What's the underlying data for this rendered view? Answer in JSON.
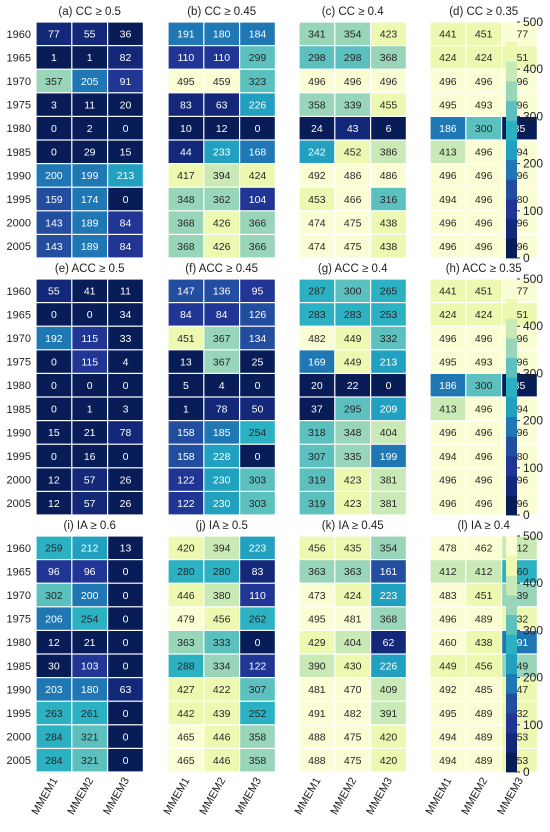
{
  "chart_data": {
    "type": "heatmap",
    "years": [
      "1960",
      "1965",
      "1970",
      "1975",
      "1980",
      "1985",
      "1990",
      "1995",
      "2000",
      "2005"
    ],
    "models": [
      "MMEM1",
      "MMEM2",
      "MMEM3"
    ],
    "colorbar": {
      "min": 0,
      "max": 500,
      "ticks": [
        0,
        100,
        200,
        300,
        400,
        500
      ],
      "levels": 12,
      "colormap": "YlGnBu"
    },
    "panels": [
      {
        "title": "(a) CC ≥ 0.5",
        "values": [
          [
            77,
            55,
            36
          ],
          [
            1,
            1,
            82
          ],
          [
            357,
            205,
            91
          ],
          [
            3,
            11,
            20
          ],
          [
            0,
            2,
            0
          ],
          [
            0,
            29,
            15
          ],
          [
            200,
            199,
            213
          ],
          [
            159,
            174,
            0
          ],
          [
            143,
            189,
            84
          ],
          [
            143,
            189,
            84
          ]
        ]
      },
      {
        "title": "(b) CC ≥ 0.45",
        "values": [
          [
            191,
            180,
            184
          ],
          [
            110,
            110,
            299
          ],
          [
            495,
            459,
            323
          ],
          [
            83,
            63,
            226
          ],
          [
            10,
            12,
            0
          ],
          [
            44,
            233,
            168
          ],
          [
            417,
            394,
            424
          ],
          [
            348,
            362,
            104
          ],
          [
            368,
            426,
            366
          ],
          [
            368,
            426,
            366
          ]
        ]
      },
      {
        "title": "(c) CC ≥ 0.4",
        "values": [
          [
            341,
            354,
            423
          ],
          [
            298,
            298,
            368
          ],
          [
            496,
            496,
            496
          ],
          [
            358,
            339,
            455
          ],
          [
            24,
            43,
            6
          ],
          [
            242,
            452,
            386
          ],
          [
            492,
            486,
            486
          ],
          [
            453,
            466,
            316
          ],
          [
            474,
            475,
            438
          ],
          [
            474,
            475,
            438
          ]
        ]
      },
      {
        "title": "(d) CC ≥ 0.35",
        "values": [
          [
            441,
            451,
            477
          ],
          [
            424,
            424,
            451
          ],
          [
            496,
            496,
            496
          ],
          [
            495,
            493,
            496
          ],
          [
            186,
            300,
            35
          ],
          [
            413,
            496,
            494
          ],
          [
            496,
            496,
            496
          ],
          [
            494,
            496,
            480
          ],
          [
            496,
            496,
            496
          ],
          [
            496,
            496,
            496
          ]
        ]
      },
      {
        "title": "(e) ACC ≥ 0.5",
        "values": [
          [
            55,
            41,
            11
          ],
          [
            0,
            0,
            34
          ],
          [
            192,
            115,
            33
          ],
          [
            0,
            115,
            4
          ],
          [
            0,
            0,
            0
          ],
          [
            0,
            1,
            3
          ],
          [
            15,
            21,
            78
          ],
          [
            0,
            16,
            0
          ],
          [
            12,
            57,
            26
          ],
          [
            12,
            57,
            26
          ]
        ]
      },
      {
        "title": "(f) ACC ≥ 0.45",
        "values": [
          [
            147,
            136,
            95
          ],
          [
            84,
            84,
            126
          ],
          [
            451,
            367,
            134
          ],
          [
            13,
            367,
            25
          ],
          [
            5,
            4,
            0
          ],
          [
            1,
            78,
            50
          ],
          [
            158,
            185,
            254
          ],
          [
            158,
            228,
            0
          ],
          [
            122,
            230,
            303
          ],
          [
            122,
            230,
            303
          ]
        ]
      },
      {
        "title": "(g) ACC ≥ 0.4",
        "values": [
          [
            287,
            300,
            265
          ],
          [
            283,
            283,
            253
          ],
          [
            482,
            449,
            332
          ],
          [
            169,
            449,
            213
          ],
          [
            20,
            22,
            0
          ],
          [
            37,
            295,
            209
          ],
          [
            318,
            348,
            404
          ],
          [
            307,
            335,
            199
          ],
          [
            319,
            423,
            381
          ],
          [
            319,
            423,
            381
          ]
        ]
      },
      {
        "title": "(h) ACC ≥ 0.35",
        "values": [
          [
            441,
            451,
            477
          ],
          [
            424,
            424,
            451
          ],
          [
            496,
            496,
            496
          ],
          [
            495,
            493,
            496
          ],
          [
            186,
            300,
            35
          ],
          [
            413,
            496,
            494
          ],
          [
            496,
            496,
            496
          ],
          [
            494,
            496,
            480
          ],
          [
            496,
            496,
            496
          ],
          [
            496,
            496,
            496
          ]
        ]
      },
      {
        "title": "(i) IA ≥ 0.6",
        "values": [
          [
            259,
            212,
            13
          ],
          [
            96,
            96,
            0
          ],
          [
            302,
            200,
            0
          ],
          [
            206,
            254,
            0
          ],
          [
            12,
            21,
            0
          ],
          [
            30,
            103,
            0
          ],
          [
            203,
            180,
            63
          ],
          [
            263,
            261,
            0
          ],
          [
            284,
            321,
            0
          ],
          [
            284,
            321,
            0
          ]
        ]
      },
      {
        "title": "(j) IA ≥ 0.5",
        "values": [
          [
            420,
            394,
            223
          ],
          [
            280,
            280,
            83
          ],
          [
            446,
            380,
            110
          ],
          [
            479,
            456,
            262
          ],
          [
            363,
            333,
            0
          ],
          [
            288,
            334,
            122
          ],
          [
            427,
            422,
            307
          ],
          [
            442,
            439,
            252
          ],
          [
            465,
            446,
            358
          ],
          [
            465,
            446,
            358
          ]
        ]
      },
      {
        "title": "(k) IA ≥ 0.45",
        "values": [
          [
            456,
            435,
            354
          ],
          [
            363,
            363,
            161
          ],
          [
            473,
            424,
            223
          ],
          [
            495,
            481,
            368
          ],
          [
            429,
            404,
            62
          ],
          [
            390,
            430,
            226
          ],
          [
            481,
            470,
            409
          ],
          [
            491,
            482,
            391
          ],
          [
            488,
            475,
            420
          ],
          [
            488,
            475,
            420
          ]
        ]
      },
      {
        "title": "(l) IA ≥ 0.4",
        "values": [
          [
            478,
            462,
            412
          ],
          [
            412,
            412,
            260
          ],
          [
            483,
            451,
            339
          ],
          [
            496,
            489,
            432
          ],
          [
            460,
            438,
            191
          ],
          [
            449,
            456,
            349
          ],
          [
            492,
            485,
            447
          ],
          [
            495,
            489,
            432
          ],
          [
            494,
            489,
            453
          ],
          [
            494,
            489,
            453
          ]
        ]
      }
    ]
  }
}
